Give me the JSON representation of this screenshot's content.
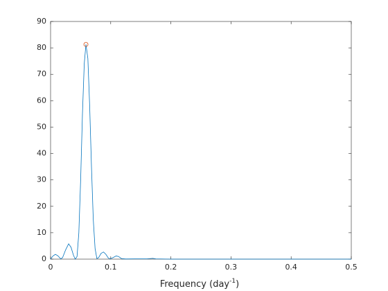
{
  "chart_data": {
    "type": "line",
    "xlabel": [
      "Frequency (day",
      "-1",
      ")"
    ],
    "x": [
      0,
      0.004,
      0.008,
      0.012,
      0.017,
      0.02,
      0.025,
      0.03,
      0.034,
      0.038,
      0.041,
      0.044,
      0.047,
      0.05,
      0.053,
      0.056,
      0.0588,
      0.062,
      0.065,
      0.068,
      0.071,
      0.074,
      0.077,
      0.08,
      0.084,
      0.088,
      0.092,
      0.096,
      0.099,
      0.104,
      0.109,
      0.113,
      0.118,
      0.125,
      0.14,
      0.16,
      0.17,
      0.175,
      0.2,
      0.3,
      0.4,
      0.5
    ],
    "series": [
      {
        "color": "#0072bd",
        "values": [
          0,
          1.2,
          1.8,
          1.3,
          0.1,
          0.6,
          3.5,
          5.8,
          4.5,
          1.5,
          0,
          1,
          10,
          30,
          55,
          74,
          81.3,
          76,
          58,
          35,
          15,
          4,
          0.2,
          0.6,
          2.2,
          2.7,
          1.8,
          0.4,
          0.1,
          0.6,
          1.2,
          1,
          0.2,
          0.05,
          0.1,
          0.1,
          0.3,
          0.1,
          0,
          0,
          0,
          0
        ]
      }
    ],
    "peak": {
      "x": 0.0588,
      "y": 81.3,
      "color": "#d95319",
      "marker": "circle"
    },
    "xlim": [
      0,
      0.5
    ],
    "ylim": [
      0,
      90
    ],
    "xticks": [
      0,
      0.1,
      0.2,
      0.3,
      0.4,
      0.5
    ],
    "yticks": [
      0,
      10,
      20,
      30,
      40,
      50,
      60,
      70,
      80,
      90
    ],
    "grid": false,
    "box": true
  }
}
